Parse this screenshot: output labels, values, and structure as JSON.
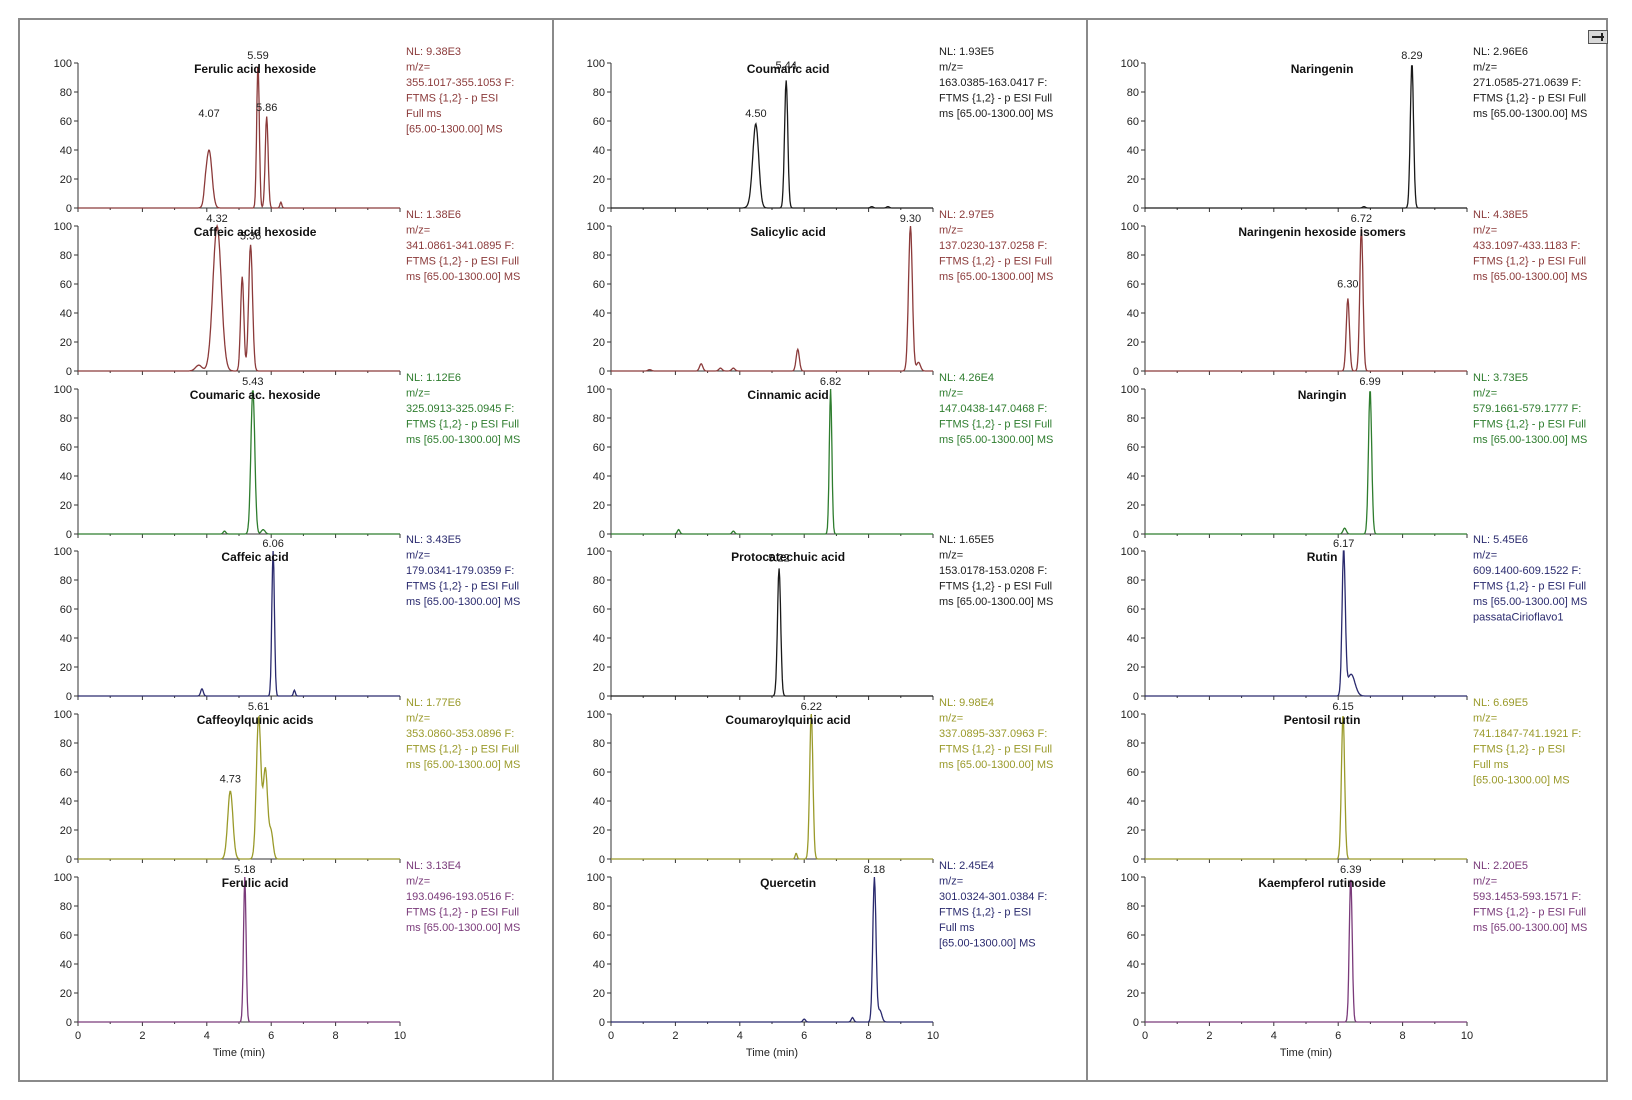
{
  "figure": {
    "x_axis_label": "Time (min)",
    "x_ticks": [
      "0",
      "2",
      "4",
      "6",
      "8",
      "10"
    ],
    "y_ticks": [
      "0",
      "20",
      "40",
      "60",
      "80",
      "100"
    ]
  },
  "chart_data": [
    {
      "type": "line",
      "column": 0,
      "row": 0,
      "title": "Ferulic acid hexoside",
      "color": "#8b3a3a",
      "xlim": [
        0,
        10
      ],
      "ylim": [
        0,
        100
      ],
      "peak_labels": [
        {
          "x": 4.07,
          "y": 60,
          "text": "4.07"
        },
        {
          "x": 5.59,
          "y": 100,
          "text": "5.59"
        },
        {
          "x": 5.86,
          "y": 64,
          "text": "5.86"
        }
      ],
      "peaks": [
        [
          3.95,
          5,
          0.04
        ],
        [
          4.07,
          40,
          0.09
        ],
        [
          5.59,
          100,
          0.04
        ],
        [
          5.86,
          63,
          0.045
        ],
        [
          6.3,
          4,
          0.03
        ]
      ],
      "info": [
        "NL: 9.38E3",
        "m/z=",
        "355.1017-355.1053 F:",
        "FTMS {1,2}  - p ESI",
        "Full ms",
        "[65.00-1300.00]  MS"
      ]
    },
    {
      "type": "line",
      "column": 0,
      "row": 1,
      "title": "Caffeic acid hexoside",
      "color": "#8b3a3a",
      "xlim": [
        0,
        10
      ],
      "ylim": [
        0,
        100
      ],
      "peak_labels": [
        {
          "x": 4.32,
          "y": 100,
          "text": "4.32"
        },
        {
          "x": 5.36,
          "y": 88,
          "text": "5.36"
        }
      ],
      "peaks": [
        [
          3.75,
          4,
          0.1
        ],
        [
          4.32,
          100,
          0.13
        ],
        [
          5.1,
          65,
          0.05
        ],
        [
          5.36,
          87,
          0.06
        ]
      ],
      "info": [
        "NL: 1.38E6",
        "m/z=",
        "341.0861-341.0895 F:",
        "FTMS {1,2}  - p ESI Full",
        "ms [65.00-1300.00]  MS"
      ]
    },
    {
      "type": "line",
      "column": 0,
      "row": 2,
      "title": "Coumaric ac. hexoside",
      "color": "#2e7d2e",
      "xlim": [
        0,
        10
      ],
      "ylim": [
        0,
        100
      ],
      "peak_labels": [
        {
          "x": 5.43,
          "y": 100,
          "text": "5.43"
        }
      ],
      "peaks": [
        [
          4.55,
          2,
          0.04
        ],
        [
          5.43,
          100,
          0.06
        ],
        [
          5.75,
          3,
          0.06
        ]
      ],
      "info": [
        "NL: 1.12E6",
        "m/z=",
        "325.0913-325.0945 F:",
        "FTMS {1,2}  - p ESI Full",
        "ms [65.00-1300.00]  MS"
      ]
    },
    {
      "type": "line",
      "column": 0,
      "row": 3,
      "title": "Caffeic acid",
      "color": "#2a2a6e",
      "xlim": [
        0,
        10
      ],
      "ylim": [
        0,
        100
      ],
      "peak_labels": [
        {
          "x": 6.06,
          "y": 100,
          "text": "6.06"
        }
      ],
      "peaks": [
        [
          3.85,
          5,
          0.04
        ],
        [
          6.06,
          100,
          0.04
        ],
        [
          6.72,
          4,
          0.03
        ]
      ],
      "info": [
        "NL: 3.43E5",
        "m/z=",
        "179.0341-179.0359 F:",
        "FTMS {1,2}  - p ESI Full",
        "ms [65.00-1300.00]  MS"
      ]
    },
    {
      "type": "line",
      "column": 0,
      "row": 4,
      "title": "Caffeoylquinic acids",
      "color": "#9a9a2a",
      "xlim": [
        0,
        10
      ],
      "ylim": [
        0,
        100
      ],
      "peak_labels": [
        {
          "x": 4.73,
          "y": 50,
          "text": "4.73"
        },
        {
          "x": 5.61,
          "y": 100,
          "text": "5.61"
        }
      ],
      "peaks": [
        [
          4.73,
          47,
          0.08
        ],
        [
          5.61,
          98,
          0.07
        ],
        [
          5.82,
          62,
          0.07
        ],
        [
          6.0,
          18,
          0.06
        ]
      ],
      "info": [
        "NL: 1.77E6",
        "m/z=",
        "353.0860-353.0896 F:",
        "FTMS {1,2}  - p ESI Full",
        "ms [65.00-1300.00]  MS"
      ]
    },
    {
      "type": "line",
      "column": 0,
      "row": 5,
      "title": "Ferulic acid",
      "color": "#7a3a7a",
      "xlim": [
        0,
        10
      ],
      "ylim": [
        0,
        100
      ],
      "peak_labels": [
        {
          "x": 5.18,
          "y": 100,
          "text": "5.18"
        }
      ],
      "peaks": [
        [
          5.18,
          100,
          0.04
        ]
      ],
      "info": [
        "NL: 3.13E4",
        "m/z=",
        "193.0496-193.0516 F:",
        "FTMS {1,2}  - p ESI Full",
        "ms [65.00-1300.00]  MS"
      ]
    },
    {
      "type": "line",
      "column": 1,
      "row": 0,
      "title": "Coumaric acid",
      "color": "#1a1a1a",
      "xlim": [
        0,
        10
      ],
      "ylim": [
        0,
        100
      ],
      "peak_labels": [
        {
          "x": 4.5,
          "y": 60,
          "text": "4.50"
        },
        {
          "x": 5.44,
          "y": 93,
          "text": "5.44"
        }
      ],
      "peaks": [
        [
          4.4,
          5,
          0.1
        ],
        [
          4.5,
          55,
          0.09
        ],
        [
          5.44,
          88,
          0.05
        ],
        [
          8.1,
          1,
          0.04
        ],
        [
          8.6,
          1,
          0.04
        ]
      ],
      "info": [
        "NL: 1.93E5",
        "m/z=",
        "163.0385-163.0417 F:",
        "FTMS {1,2}  - p ESI Full",
        "ms [65.00-1300.00]  MS"
      ]
    },
    {
      "type": "line",
      "column": 1,
      "row": 1,
      "title": "Salicylic acid",
      "color": "#8b3a3a",
      "xlim": [
        0,
        10
      ],
      "ylim": [
        0,
        100
      ],
      "peak_labels": [
        {
          "x": 9.3,
          "y": 100,
          "text": "9.30"
        }
      ],
      "peaks": [
        [
          1.2,
          1,
          0.05
        ],
        [
          2.8,
          5,
          0.05
        ],
        [
          3.4,
          2,
          0.05
        ],
        [
          3.8,
          2,
          0.05
        ],
        [
          5.8,
          15,
          0.05
        ],
        [
          9.3,
          100,
          0.06
        ],
        [
          9.55,
          6,
          0.06
        ]
      ],
      "info": [
        "NL: 2.97E5",
        "m/z=",
        "137.0230-137.0258 F:",
        "FTMS {1,2}  - p ESI Full",
        "ms [65.00-1300.00]  MS"
      ]
    },
    {
      "type": "line",
      "column": 1,
      "row": 2,
      "title": "Cinnamic acid",
      "color": "#2e7d2e",
      "xlim": [
        0,
        10
      ],
      "ylim": [
        0,
        100
      ],
      "peak_labels": [
        {
          "x": 6.82,
          "y": 100,
          "text": "6.82"
        }
      ],
      "peaks": [
        [
          2.1,
          3,
          0.04
        ],
        [
          3.8,
          2,
          0.04
        ],
        [
          6.82,
          100,
          0.04
        ]
      ],
      "info": [
        "NL: 4.26E4",
        "m/z=",
        "147.0438-147.0468 F:",
        "FTMS {1,2}  - p ESI Full",
        "ms [65.00-1300.00]  MS"
      ]
    },
    {
      "type": "line",
      "column": 1,
      "row": 3,
      "title": "Protocatechuic acid",
      "color": "#1a1a1a",
      "xlim": [
        0,
        10
      ],
      "ylim": [
        0,
        100
      ],
      "peak_labels": [
        {
          "x": 5.22,
          "y": 90,
          "text": "5.22"
        }
      ],
      "peaks": [
        [
          5.22,
          88,
          0.05
        ]
      ],
      "info": [
        "NL: 1.65E5",
        "m/z=",
        "153.0178-153.0208 F:",
        "FTMS {1,2}  - p ESI Full",
        "ms [65.00-1300.00]  MS"
      ]
    },
    {
      "type": "line",
      "column": 1,
      "row": 4,
      "title": "Coumaroylquinic acid",
      "color": "#9a9a2a",
      "xlim": [
        0,
        10
      ],
      "ylim": [
        0,
        100
      ],
      "peak_labels": [
        {
          "x": 6.22,
          "y": 100,
          "text": "6.22"
        }
      ],
      "peaks": [
        [
          5.75,
          4,
          0.03
        ],
        [
          6.22,
          100,
          0.05
        ]
      ],
      "info": [
        "NL: 9.98E4",
        "m/z=",
        "337.0895-337.0963 F:",
        "FTMS {1,2}  - p ESI Full",
        "ms [65.00-1300.00]  MS"
      ]
    },
    {
      "type": "line",
      "column": 1,
      "row": 5,
      "title": "Quercetin",
      "color": "#2a2a6e",
      "xlim": [
        0,
        10
      ],
      "ylim": [
        0,
        100
      ],
      "peak_labels": [
        {
          "x": 8.18,
          "y": 100,
          "text": "8.18"
        }
      ],
      "peaks": [
        [
          6.0,
          2,
          0.04
        ],
        [
          7.5,
          3,
          0.04
        ],
        [
          8.18,
          100,
          0.05
        ],
        [
          8.35,
          8,
          0.06
        ]
      ],
      "info": [
        "NL: 2.45E4",
        "m/z=",
        "301.0324-301.0384 F:",
        "FTMS {1,2}  - p ESI",
        "Full ms",
        "[65.00-1300.00]  MS"
      ]
    },
    {
      "type": "line",
      "column": 2,
      "row": 0,
      "title": "Naringenin",
      "color": "#1a1a1a",
      "xlim": [
        0,
        10
      ],
      "ylim": [
        0,
        100
      ],
      "peak_labels": [
        {
          "x": 8.29,
          "y": 100,
          "text": "8.29"
        }
      ],
      "peaks": [
        [
          6.8,
          1,
          0.04
        ],
        [
          8.29,
          100,
          0.05
        ]
      ],
      "info": [
        "NL: 2.96E6",
        "m/z=",
        "271.0585-271.0639 F:",
        "FTMS {1,2}  - p ESI Full",
        "ms [65.00-1300.00]  MS"
      ]
    },
    {
      "type": "line",
      "column": 2,
      "row": 1,
      "title": "Naringenin hexoside isomers",
      "color": "#8b3a3a",
      "xlim": [
        0,
        10
      ],
      "ylim": [
        0,
        100
      ],
      "peak_labels": [
        {
          "x": 6.3,
          "y": 55,
          "text": "6.30"
        },
        {
          "x": 6.72,
          "y": 100,
          "text": "6.72"
        }
      ],
      "peaks": [
        [
          6.3,
          50,
          0.05
        ],
        [
          6.72,
          98,
          0.05
        ]
      ],
      "info": [
        "NL: 4.38E5",
        "m/z=",
        "433.1097-433.1183 F:",
        "FTMS {1,2}  - p ESI Full",
        "ms [65.00-1300.00]  MS"
      ]
    },
    {
      "type": "line",
      "column": 2,
      "row": 2,
      "title": "Naringin",
      "color": "#2e7d2e",
      "xlim": [
        0,
        10
      ],
      "ylim": [
        0,
        100
      ],
      "peak_labels": [
        {
          "x": 6.99,
          "y": 100,
          "text": "6.99"
        }
      ],
      "peaks": [
        [
          6.2,
          4,
          0.05
        ],
        [
          6.99,
          100,
          0.05
        ]
      ],
      "info": [
        "NL: 3.73E5",
        "m/z=",
        "579.1661-579.1777 F:",
        "FTMS {1,2}  - p ESI Full",
        "ms [65.00-1300.00]  MS"
      ]
    },
    {
      "type": "line",
      "column": 2,
      "row": 3,
      "title": "Rutin",
      "color": "#2a2a6e",
      "xlim": [
        0,
        10
      ],
      "ylim": [
        0,
        100
      ],
      "peak_labels": [
        {
          "x": 6.17,
          "y": 100,
          "text": "6.17"
        }
      ],
      "peaks": [
        [
          6.17,
          100,
          0.05
        ],
        [
          6.4,
          15,
          0.12
        ]
      ],
      "info": [
        "NL: 5.45E6",
        "m/z=",
        "609.1400-609.1522 F:",
        "FTMS {1,2}  - p ESI Full",
        "ms [65.00-1300.00]  MS",
        "passataCirioflavo1"
      ]
    },
    {
      "type": "line",
      "column": 2,
      "row": 4,
      "title": "Pentosil rutin",
      "color": "#9a9a2a",
      "xlim": [
        0,
        10
      ],
      "ylim": [
        0,
        100
      ],
      "peak_labels": [
        {
          "x": 6.15,
          "y": 100,
          "text": "6.15"
        }
      ],
      "peaks": [
        [
          6.15,
          100,
          0.05
        ]
      ],
      "info": [
        "NL: 6.69E5",
        "m/z=",
        "741.1847-741.1921 F:",
        "FTMS {1,2}  - p ESI",
        "Full ms",
        "[65.00-1300.00]  MS"
      ]
    },
    {
      "type": "line",
      "column": 2,
      "row": 5,
      "title": "Kaempferol rutinoside",
      "color": "#7a3a7a",
      "xlim": [
        0,
        10
      ],
      "ylim": [
        0,
        100
      ],
      "peak_labels": [
        {
          "x": 6.39,
          "y": 100,
          "text": "6.39"
        }
      ],
      "peaks": [
        [
          6.39,
          100,
          0.045
        ]
      ],
      "info": [
        "NL: 2.20E5",
        "m/z=",
        "593.1453-593.1571 F:",
        "FTMS {1,2}  - p ESI Full",
        "ms [65.00-1300.00]  MS"
      ]
    }
  ]
}
